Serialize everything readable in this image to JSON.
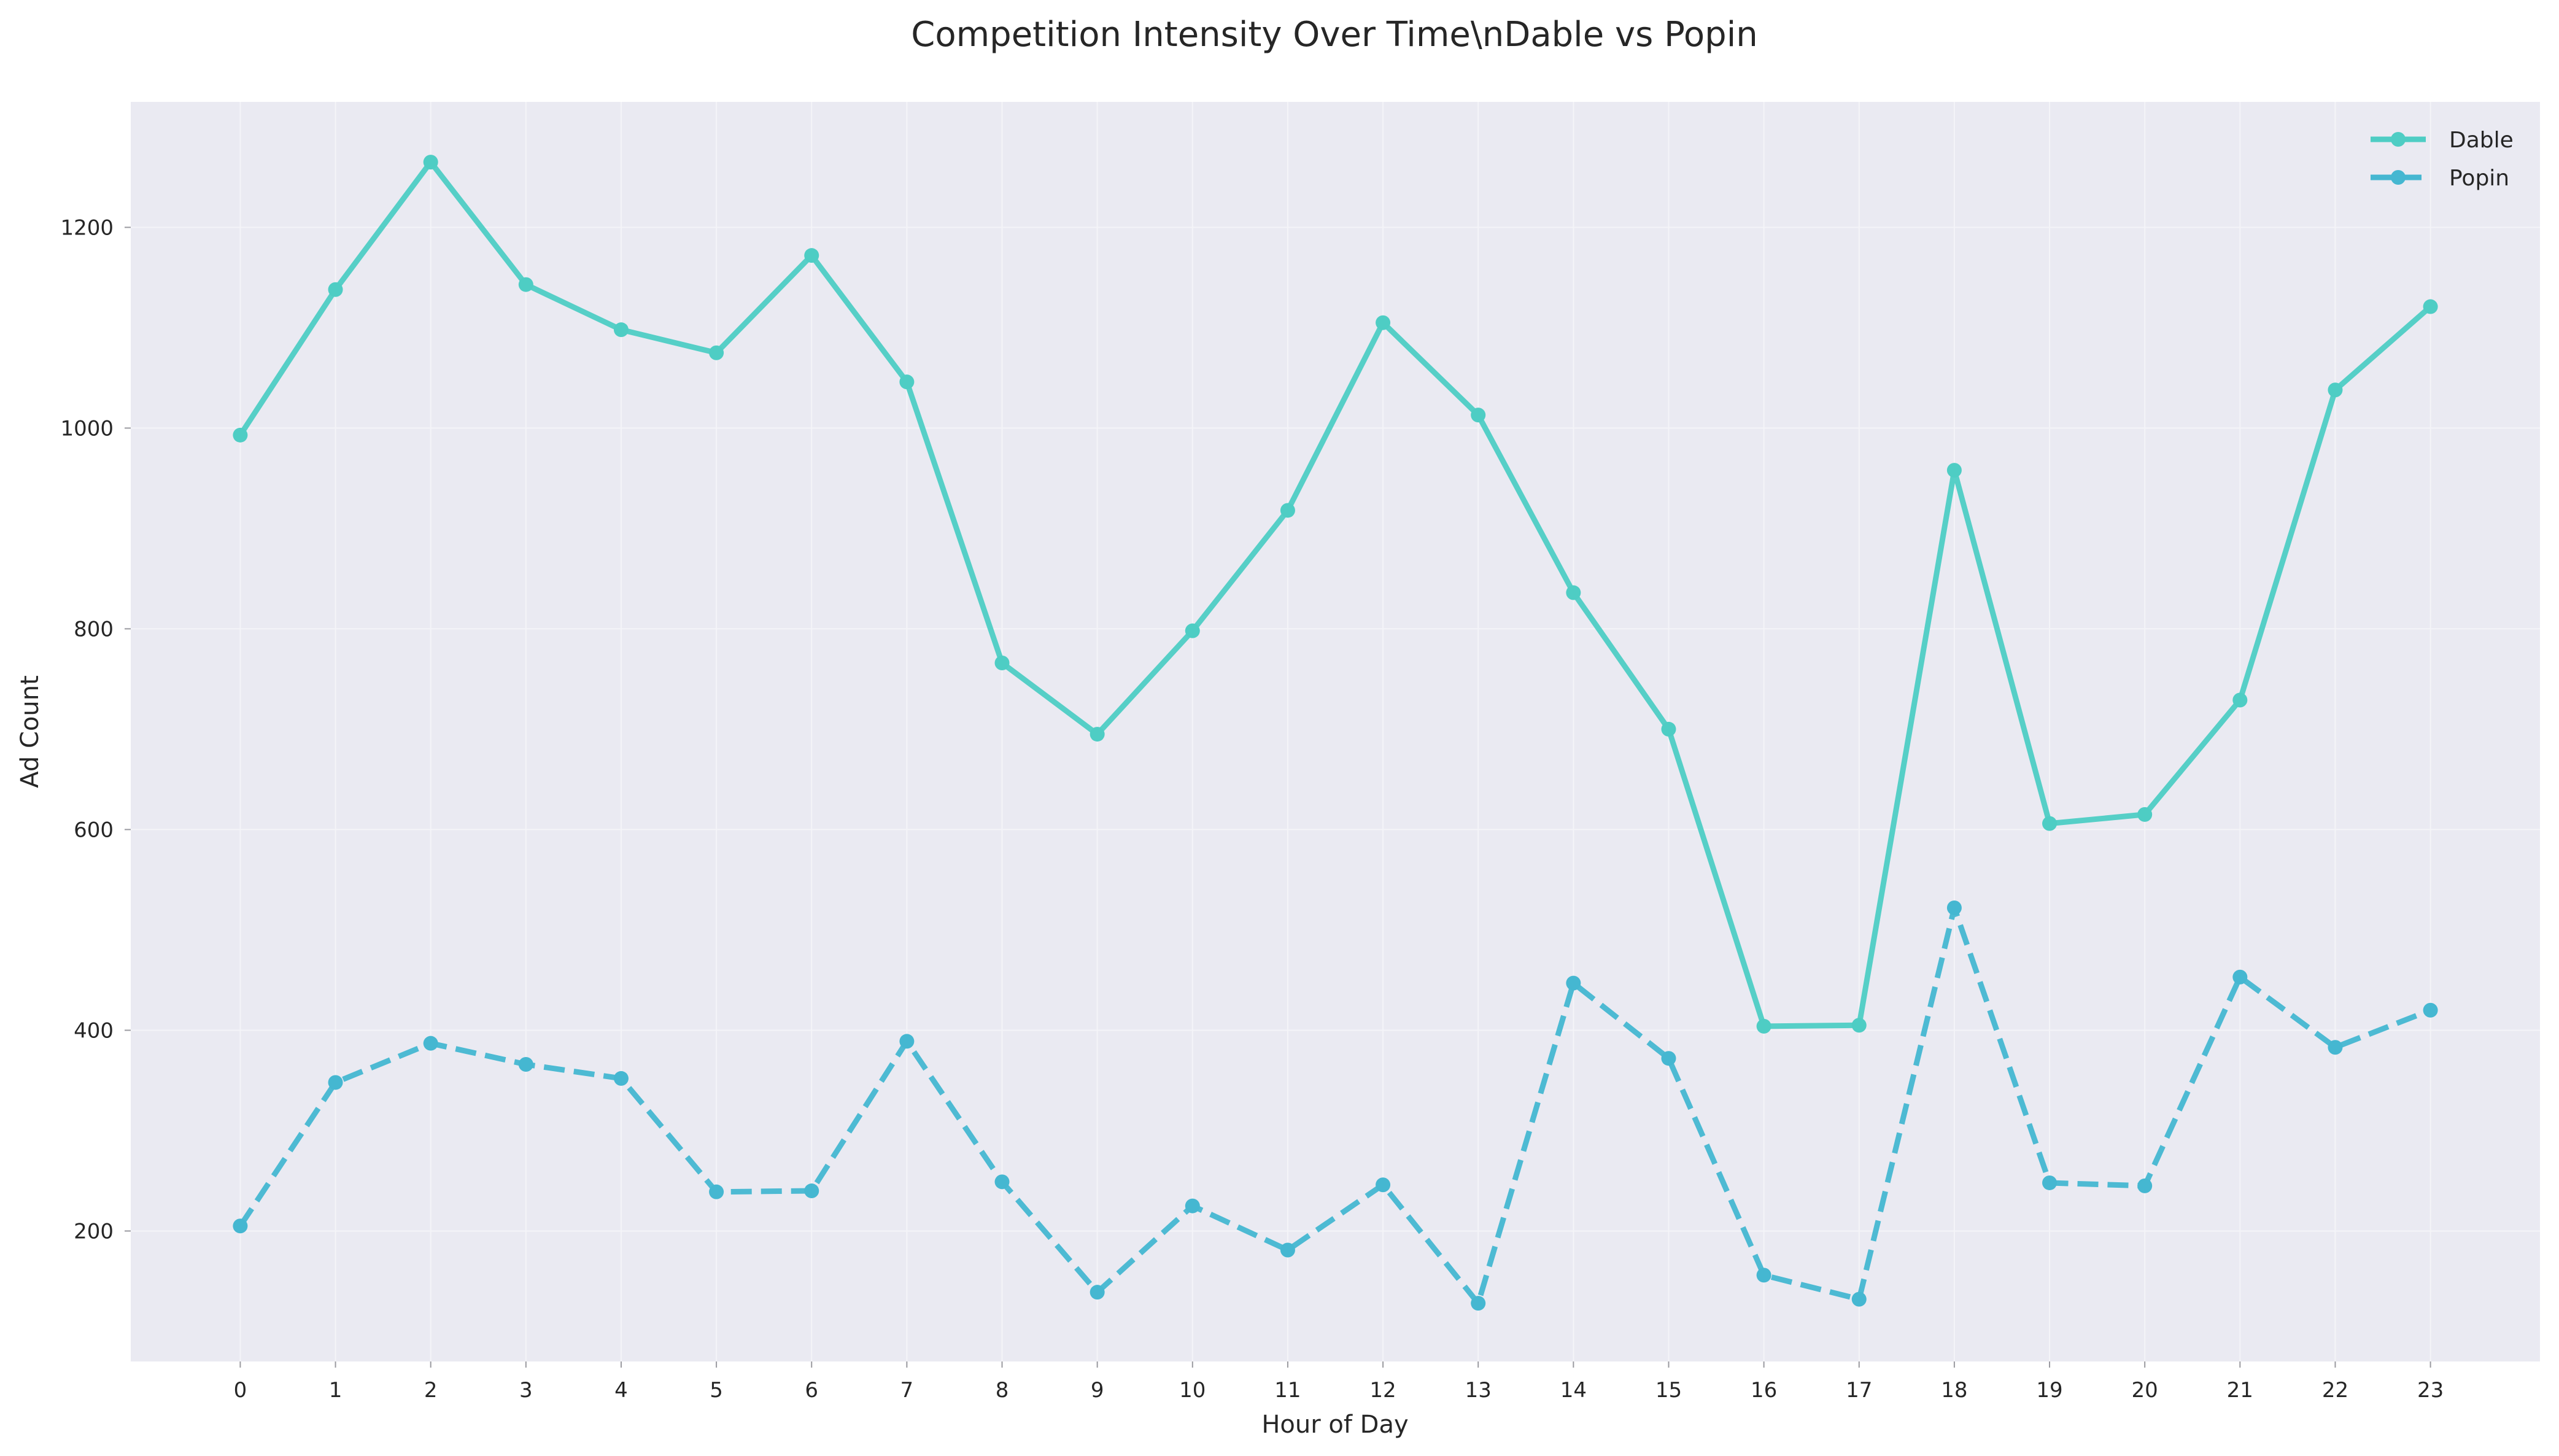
{
  "chart_data": {
    "type": "line",
    "title": "Competition Intensity Over Time\\nDable vs Popin",
    "xlabel": "Hour of Day",
    "ylabel": "Ad Count",
    "x": [
      0,
      1,
      2,
      3,
      4,
      5,
      6,
      7,
      8,
      9,
      10,
      11,
      12,
      13,
      14,
      15,
      16,
      17,
      18,
      19,
      20,
      21,
      22,
      23
    ],
    "xlim": [
      -1.15,
      24.15
    ],
    "ylim": [
      70,
      1325
    ],
    "yticks": [
      200,
      400,
      600,
      800,
      1000,
      1200
    ],
    "grid": true,
    "legend_position": "top-right",
    "series": [
      {
        "name": "Dable",
        "color": "#4ECDC4",
        "line_style": "solid",
        "marker": "circle",
        "values": [
          993,
          1138,
          1265,
          1143,
          1098,
          1075,
          1172,
          1046,
          766,
          695,
          798,
          918,
          1105,
          1013,
          836,
          700,
          404,
          405,
          958,
          606,
          615,
          729,
          1038,
          1121
        ]
      },
      {
        "name": "Popin",
        "color": "#45B7D1",
        "line_style": "dashed",
        "marker": "circle",
        "values": [
          205,
          348,
          387,
          366,
          352,
          239,
          240,
          389,
          249,
          139,
          225,
          181,
          246,
          128,
          447,
          372,
          156,
          132,
          522,
          248,
          245,
          453,
          383,
          420
        ]
      }
    ]
  }
}
